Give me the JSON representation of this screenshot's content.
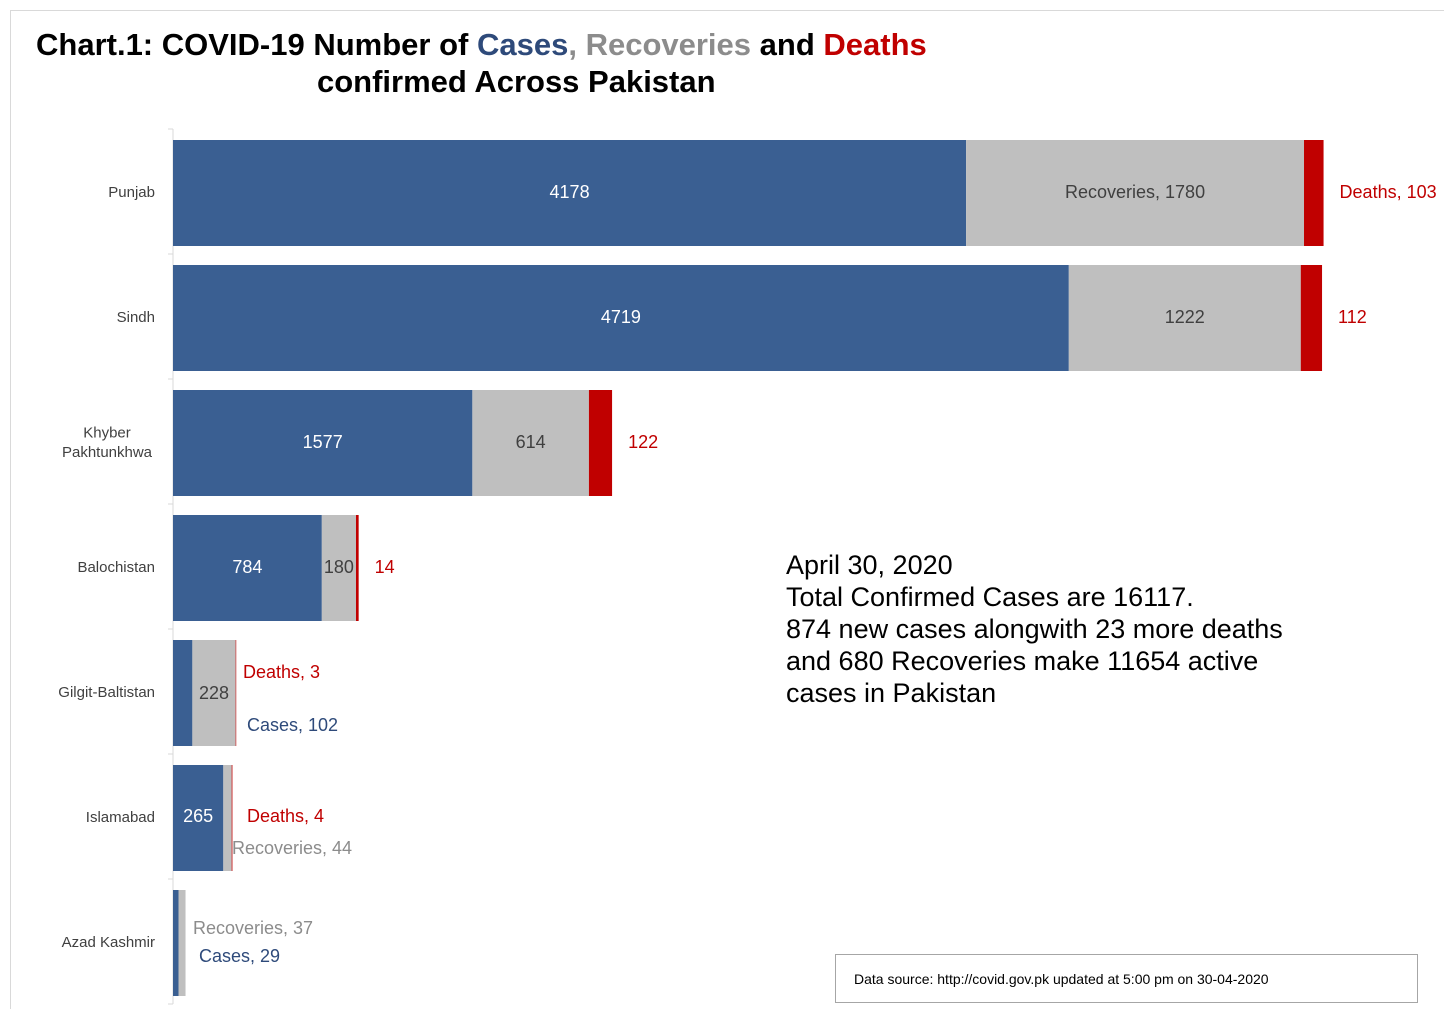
{
  "title": {
    "prefix": "Chart.1: COVID-19 Number of",
    "cases_word": "Cases",
    "comma": ",",
    "recoveries_word": "Recoveries",
    "and_word": "and",
    "deaths_word": "Deaths",
    "line2": "confirmed Across Pakistan"
  },
  "colors": {
    "cases": "#3a5f92",
    "recoveries": "#bfbfbf",
    "deaths": "#c00000",
    "cases_label": "#2e4a7a",
    "recoveries_label": "#8c8c8c"
  },
  "chart_data": {
    "type": "bar",
    "orientation": "horizontal",
    "stacked": true,
    "categories": [
      "Punjab",
      "Sindh",
      "Khyber Pakhtunkhwa",
      "Balochistan",
      "Gilgit-Baltistan",
      "Islamabad",
      "Azad Kashmir"
    ],
    "series": [
      {
        "name": "Cases",
        "values": [
          4178,
          4719,
          1577,
          784,
          102,
          265,
          29
        ]
      },
      {
        "name": "Recoveries",
        "values": [
          1780,
          1222,
          614,
          180,
          228,
          44,
          37
        ]
      },
      {
        "name": "Deaths",
        "values": [
          103,
          112,
          122,
          14,
          3,
          4,
          0
        ]
      }
    ],
    "data_labels": {
      "Cases": [
        "4178",
        "4719",
        "1577",
        "784",
        "Cases, 102",
        "265",
        "Cases, 29"
      ],
      "Recoveries": [
        "Recoveries, 1780",
        "1222",
        "614",
        "180",
        "228",
        "Recoveries, 44",
        "Recoveries, 37"
      ],
      "Deaths": [
        "Deaths, 103",
        "112",
        "122",
        "14",
        "Deaths, 3",
        "Deaths, 4",
        ""
      ]
    },
    "grid": false,
    "legend": "none"
  },
  "note": {
    "date": "April 30, 2020",
    "line1": "Total Confirmed Cases are 16117.",
    "line2": "874 new cases alongwith 23 more deaths",
    "line3": "and 680 Recoveries make 11654 active",
    "line4": "cases in Pakistan"
  },
  "source": "Data source: http://covid.gov.pk updated at 5:00 pm on 30-04-2020"
}
